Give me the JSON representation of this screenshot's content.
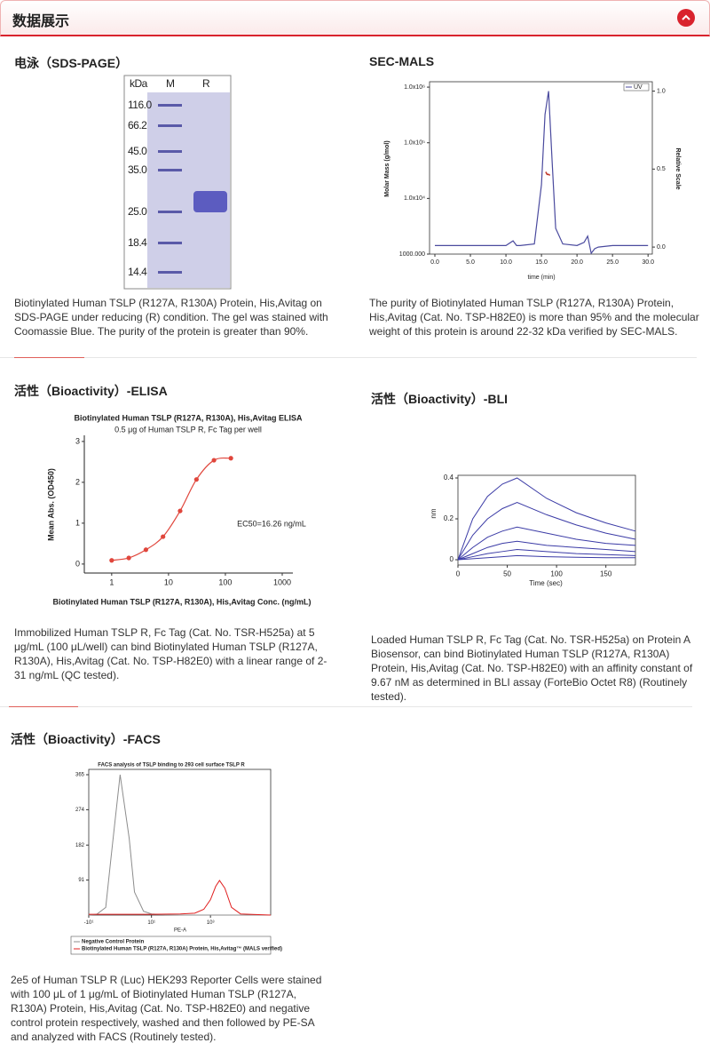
{
  "header": {
    "title": "数据展示"
  },
  "sections": [
    {
      "title": "电泳（SDS-PAGE）",
      "caption": "Biotinylated Human TSLP (R127A, R130A) Protein, His,Avitag on SDS-PAGE under reducing (R) condition. The gel was stained with Coomassie Blue. The purity of the protein is greater than 90%.",
      "gel": {
        "unit_label": "kDa",
        "lanes": [
          "M",
          "R"
        ],
        "markers": [
          "116.0",
          "66.2",
          "45.0",
          "35.0",
          "25.0",
          "18.4",
          "14.4"
        ]
      }
    },
    {
      "title": "SEC-MALS",
      "caption": "The purity of Biotinylated Human TSLP (R127A, R130A) Protein, His,Avitag (Cat. No. TSP-H82E0) is more than 95% and the molecular weight of this protein is around 22-32 kDa verified by SEC-MALS.",
      "chart_data": {
        "type": "line",
        "x_label": "time (min)",
        "y_label": "Molar Mass (g/mol)",
        "y2_label": "Relative Scale",
        "xlim": [
          -0.75,
          30.6
        ],
        "xticks": [
          {
            "value": 0,
            "label": "0.0"
          },
          {
            "value": 5,
            "label": "5.0"
          },
          {
            "value": 10,
            "label": "10.0"
          },
          {
            "value": 15,
            "label": "15.0"
          },
          {
            "value": 20,
            "label": "20.0"
          },
          {
            "value": 25,
            "label": "25.0"
          },
          {
            "value": 30,
            "label": "30.0"
          }
        ],
        "y_scale": "log",
        "ylim": [
          1000,
          1250000
        ],
        "yticks": [
          {
            "value": 1000,
            "label": "1000.000"
          },
          {
            "value": 10000,
            "label": "1.0x10⁴"
          },
          {
            "value": 100000,
            "label": "1.0x10⁵"
          },
          {
            "value": 1000000,
            "label": "1.0x10⁶"
          }
        ],
        "y2lim": [
          -0.045,
          1.06
        ],
        "y2ticks": [
          {
            "value": 0,
            "label": "0.0"
          },
          0.5,
          {
            "value": 1,
            "label": "1.0"
          }
        ],
        "legend": "top-right",
        "series": [
          {
            "name": "UV",
            "color": "#4a4a9e",
            "axis": "y2",
            "x": [
              0,
              5,
              10,
              11,
              11.5,
              12,
              14,
              15,
              15.5,
              16,
              16.5,
              17,
              18,
              20,
              21,
              21.5,
              22,
              22.5,
              23,
              25,
              30
            ],
            "values": [
              0.01,
              0.01,
              0.01,
              0.04,
              0.01,
              0.01,
              0.02,
              0.4,
              0.85,
              1.0,
              0.55,
              0.12,
              0.02,
              0.01,
              0.03,
              0.07,
              -0.04,
              -0.01,
              0.0,
              0.01,
              0.01
            ]
          },
          {
            "color": "#c0392b",
            "x": [
              15.6,
              15.8,
              16.0,
              16.2
            ],
            "values": [
              30000,
              27000,
              27000,
              26000
            ]
          }
        ]
      }
    },
    {
      "title": "活性（Bioactivity）-ELISA",
      "caption": "Immobilized Human TSLP R, Fc Tag (Cat. No. TSR-H525a) at 5 μg/mL (100 μL/well) can bind Biotinylated Human TSLP (R127A, R130A), His,Avitag (Cat. No. TSP-H82E0) with a linear range of 2-31 ng/mL (QC tested).",
      "chart_data": {
        "type": "scatter",
        "title": "Biotinylated Human TSLP (R127A, R130A), His,Avitag ELISA",
        "subtitle": "0.5 μg of Human TSLP R, Fc Tag per well",
        "x_label": "Biotinylated Human TSLP (R127A, R130A), His,Avitag Conc. (ng/mL)",
        "y_label": "Mean Abs. (OD450)",
        "annotation": "EC50=16.26 ng/mL",
        "x_scale": "log",
        "xlim": [
          0.33,
          1540
        ],
        "xticks": [
          1,
          10,
          100,
          1000
        ],
        "ylim": [
          -0.22,
          3.15
        ],
        "yticks": [
          0,
          1,
          2,
          3
        ],
        "series": [
          {
            "color": "#e0463c",
            "x": [
              1,
              2,
              4,
              8,
              16,
              31,
              63,
              125
            ],
            "values": [
              0.09,
              0.15,
              0.35,
              0.67,
              1.3,
              2.07,
              2.54,
              2.59
            ]
          }
        ]
      }
    },
    {
      "title": "活性（Bioactivity）-BLI",
      "caption": "Loaded Human TSLP R, Fc Tag (Cat. No. TSR-H525a) on Protein A Biosensor, can bind Biotinylated Human TSLP (R127A, R130A) Protein, His,Avitag (Cat. No. TSP-H82E0) with an affinity constant of 9.67 nM as determined in BLI assay (ForteBio Octet R8) (Routinely tested).",
      "chart_data": {
        "type": "line",
        "x_label": "Time (sec)",
        "y_label": "nm",
        "xlim": [
          0,
          180
        ],
        "xticks": [
          0,
          50,
          100,
          150
        ],
        "ylim": [
          -0.026,
          0.413
        ],
        "yticks": [
          0,
          0.2,
          0.4
        ],
        "series": [
          {
            "color": "#3b3ba6",
            "x": [
              0,
              15,
              30,
              45,
              60,
              90,
              120,
              150,
              180
            ],
            "values": [
              0,
              0.2,
              0.31,
              0.37,
              0.4,
              0.3,
              0.23,
              0.18,
              0.14
            ]
          },
          {
            "color": "#3b3ba6",
            "x": [
              0,
              15,
              30,
              45,
              60,
              90,
              120,
              150,
              180
            ],
            "values": [
              0,
              0.12,
              0.2,
              0.25,
              0.28,
              0.22,
              0.17,
              0.13,
              0.1
            ]
          },
          {
            "color": "#3b3ba6",
            "x": [
              0,
              15,
              30,
              45,
              60,
              90,
              120,
              150,
              180
            ],
            "values": [
              0,
              0.06,
              0.11,
              0.14,
              0.16,
              0.13,
              0.1,
              0.08,
              0.07
            ]
          },
          {
            "color": "#3b3ba6",
            "x": [
              0,
              15,
              30,
              45,
              60,
              90,
              120,
              150,
              180
            ],
            "values": [
              0,
              0.03,
              0.06,
              0.08,
              0.09,
              0.07,
              0.06,
              0.05,
              0.04
            ]
          },
          {
            "color": "#3b3ba6",
            "x": [
              0,
              15,
              30,
              45,
              60,
              90,
              120,
              150,
              180
            ],
            "values": [
              0,
              0.015,
              0.03,
              0.04,
              0.05,
              0.04,
              0.03,
              0.025,
              0.02
            ]
          },
          {
            "color": "#3b3ba6",
            "x": [
              0,
              15,
              30,
              45,
              60,
              90,
              120,
              150,
              180
            ],
            "values": [
              0,
              0.005,
              0.01,
              0.015,
              0.02,
              0.015,
              0.012,
              0.01,
              0.01
            ]
          }
        ]
      }
    },
    {
      "title": "活性（Bioactivity）-FACS",
      "caption": "2e5 of Human TSLP R (Luc) HEK293 Reporter Cells were stained with 100 μL of 1 μg/mL of Biotinylated Human TSLP (R127A, R130A) Protein, His,Avitag (Cat. No. TSP-H82E0) and negative control protein respectively, washed and then followed by PE-SA and analyzed with FACS (Routinely tested).",
      "chart_data": {
        "type": "line",
        "title": "FACS analysis of  TSLP binding to 293 cell surface TSLP R",
        "x_label": "PE-A",
        "x_scale": "symlog",
        "xlim": [
          -10,
          100000
        ],
        "xticks": [
          {
            "value": -10,
            "label": "-10¹"
          },
          {
            "value": 10,
            "label": "10¹"
          },
          {
            "value": 1000,
            "label": "10³"
          }
        ],
        "ylim": [
          0,
          365
        ],
        "yticks": [
          91,
          182,
          274,
          365
        ],
        "legend": "bottom",
        "series": [
          {
            "name": "Negative Control Protein",
            "color": "#8c8c8c",
            "x": [
              -10,
              -5,
              -2,
              -1,
              0,
              1,
              2,
              5,
              10,
              30,
              100,
              1000,
              100000
            ],
            "values": [
              0,
              2,
              20,
              150,
              365,
              200,
              60,
              10,
              3,
              1,
              0,
              0,
              0
            ]
          },
          {
            "name": "Biotinylated Human TSLP (R127A, R130A) Protein, His,Avitag™ (MALS verified)",
            "color": "#e02020",
            "x": [
              -10,
              0,
              10,
              100,
              300,
              600,
              1000,
              1500,
              2000,
              3000,
              5000,
              10000,
              100000
            ],
            "values": [
              2,
              2,
              2,
              3,
              5,
              15,
              40,
              75,
              90,
              70,
              20,
              3,
              0
            ]
          }
        ]
      }
    }
  ]
}
